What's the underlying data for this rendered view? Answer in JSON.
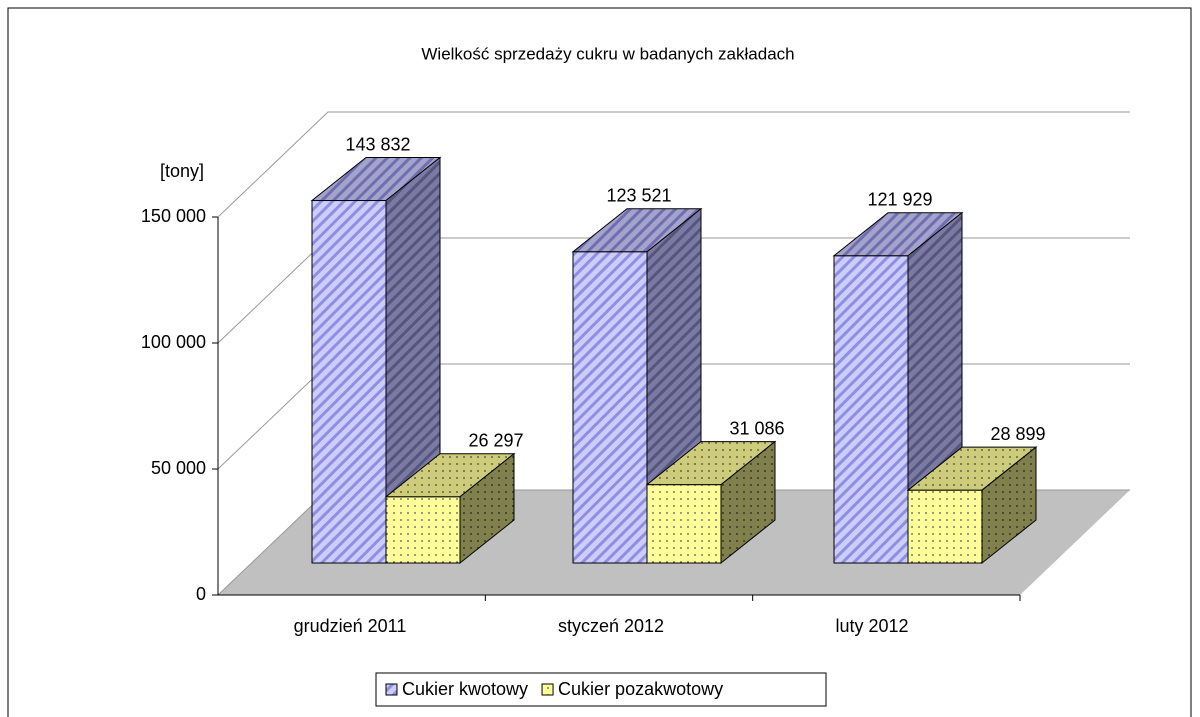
{
  "chart_data": {
    "type": "bar",
    "title": "Wielkość sprzedaży cukru w badanych zakładach",
    "y_label": "[tony]",
    "categories": [
      "grudzień 2011",
      "styczeń 2012",
      "luty 2012"
    ],
    "series": [
      {
        "name": "Cukier kwotowy",
        "color": "#ccccff",
        "values": [
          143832,
          123521,
          121929
        ],
        "value_labels": [
          "143 832",
          "123 521",
          "121 929"
        ]
      },
      {
        "name": "Cukier pozakwotowy",
        "color": "#ffff99",
        "values": [
          26297,
          31086,
          28899
        ],
        "value_labels": [
          "26 297",
          "31 086",
          "28 899"
        ]
      }
    ],
    "ylim": [
      0,
      150000
    ],
    "yticks": [
      0,
      {
        "value": 50000,
        "label": "50 000"
      },
      {
        "value": 100000,
        "label": "100 000"
      },
      {
        "value": 150000,
        "label": "150 000"
      }
    ],
    "grid": true,
    "legend": "bottom"
  }
}
